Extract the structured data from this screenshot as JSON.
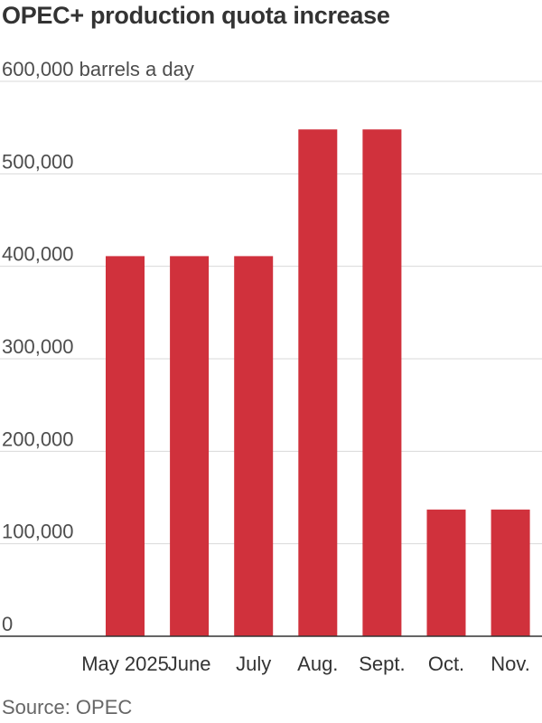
{
  "chart_data": {
    "type": "bar",
    "title": "OPEC+ production quota increase",
    "source": "Source: OPEC",
    "categories": [
      "May 2025",
      "June",
      "July",
      "Aug.",
      "Sept.",
      "Oct.",
      "Nov."
    ],
    "values": [
      411000,
      411000,
      411000,
      548000,
      548000,
      137000,
      137000
    ],
    "ylim": [
      0,
      600000
    ],
    "yticks": [
      {
        "value": 0,
        "label": "0"
      },
      {
        "value": 100000,
        "label": "100,000"
      },
      {
        "value": 200000,
        "label": "200,000"
      },
      {
        "value": 300000,
        "label": "300,000"
      },
      {
        "value": 400000,
        "label": "400,000"
      },
      {
        "value": 500000,
        "label": "500,000"
      },
      {
        "value": 600000,
        "label": "600,000 barrels a day"
      }
    ],
    "grid": true,
    "bar_color": "#d0313c"
  }
}
